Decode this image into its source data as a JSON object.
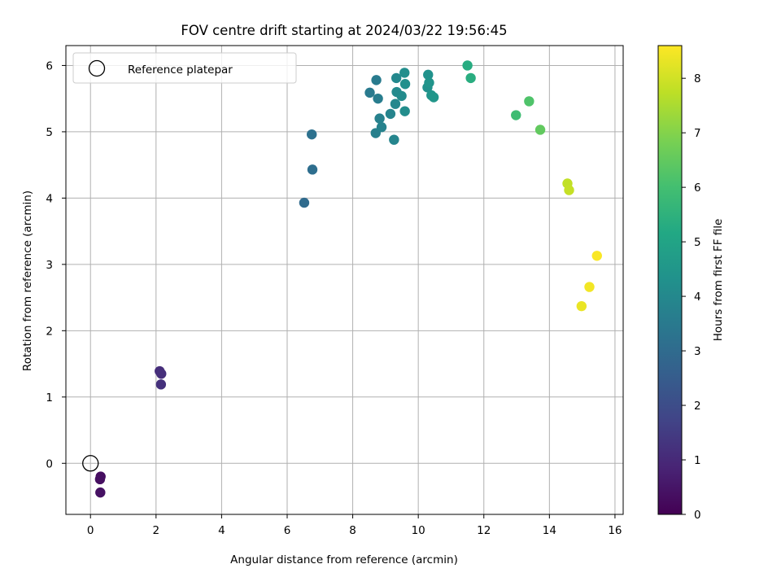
{
  "chart_data": {
    "type": "scatter",
    "title": "FOV centre drift starting at 2024/03/22 19:56:45",
    "xlabel": "Angular distance from reference (arcmin)",
    "ylabel": "Rotation from reference (arcmin)",
    "xlim": [
      -0.75,
      16.25
    ],
    "ylim": [
      -0.77,
      6.3
    ],
    "xticks": [
      0,
      2,
      4,
      6,
      8,
      10,
      12,
      14,
      16
    ],
    "yticks": [
      0,
      1,
      2,
      3,
      4,
      5,
      6
    ],
    "grid": true,
    "legend": {
      "position": "top-left",
      "entries": [
        "Reference platepar"
      ]
    },
    "reference": {
      "label": "Reference platepar",
      "x": 0,
      "y": 0
    },
    "colorbar": {
      "label": "Hours from first FF file",
      "colormap": "viridis",
      "range": [
        0,
        8.6
      ],
      "ticks": [
        0,
        1,
        2,
        3,
        4,
        5,
        6,
        7,
        8
      ]
    },
    "points": [
      {
        "x": 0.31,
        "y": -0.2,
        "hours": 0.3
      },
      {
        "x": 0.29,
        "y": -0.24,
        "hours": 0.35
      },
      {
        "x": 0.3,
        "y": -0.44,
        "hours": 0.4
      },
      {
        "x": 2.11,
        "y": 1.39,
        "hours": 1.1
      },
      {
        "x": 2.16,
        "y": 1.35,
        "hours": 1.15
      },
      {
        "x": 2.15,
        "y": 1.19,
        "hours": 1.2
      },
      {
        "x": 6.52,
        "y": 3.93,
        "hours": 3.0
      },
      {
        "x": 6.77,
        "y": 4.43,
        "hours": 3.1
      },
      {
        "x": 6.75,
        "y": 4.96,
        "hours": 3.2
      },
      {
        "x": 8.52,
        "y": 5.59,
        "hours": 3.5
      },
      {
        "x": 8.72,
        "y": 5.78,
        "hours": 3.55
      },
      {
        "x": 8.77,
        "y": 5.5,
        "hours": 3.6
      },
      {
        "x": 8.7,
        "y": 4.98,
        "hours": 3.7
      },
      {
        "x": 8.82,
        "y": 5.2,
        "hours": 3.75
      },
      {
        "x": 8.88,
        "y": 5.07,
        "hours": 3.8
      },
      {
        "x": 9.15,
        "y": 5.27,
        "hours": 3.85
      },
      {
        "x": 9.26,
        "y": 4.88,
        "hours": 3.9
      },
      {
        "x": 9.3,
        "y": 5.42,
        "hours": 3.95
      },
      {
        "x": 9.33,
        "y": 5.81,
        "hours": 4.0
      },
      {
        "x": 9.34,
        "y": 5.6,
        "hours": 4.05
      },
      {
        "x": 9.49,
        "y": 5.54,
        "hours": 4.1
      },
      {
        "x": 9.59,
        "y": 5.31,
        "hours": 4.15
      },
      {
        "x": 9.58,
        "y": 5.89,
        "hours": 4.2
      },
      {
        "x": 9.6,
        "y": 5.72,
        "hours": 4.25
      },
      {
        "x": 10.28,
        "y": 5.67,
        "hours": 4.3
      },
      {
        "x": 10.3,
        "y": 5.86,
        "hours": 4.35
      },
      {
        "x": 10.33,
        "y": 5.74,
        "hours": 4.4
      },
      {
        "x": 10.4,
        "y": 5.55,
        "hours": 4.45
      },
      {
        "x": 10.47,
        "y": 5.52,
        "hours": 4.5
      },
      {
        "x": 11.5,
        "y": 6.0,
        "hours": 5.3
      },
      {
        "x": 11.6,
        "y": 5.81,
        "hours": 5.35
      },
      {
        "x": 12.98,
        "y": 5.25,
        "hours": 5.9
      },
      {
        "x": 13.38,
        "y": 5.46,
        "hours": 6.2
      },
      {
        "x": 13.72,
        "y": 5.03,
        "hours": 6.5
      },
      {
        "x": 14.55,
        "y": 4.22,
        "hours": 7.8
      },
      {
        "x": 14.6,
        "y": 4.12,
        "hours": 7.85
      },
      {
        "x": 14.98,
        "y": 2.37,
        "hours": 8.35
      },
      {
        "x": 15.22,
        "y": 2.66,
        "hours": 8.45
      },
      {
        "x": 15.45,
        "y": 3.13,
        "hours": 8.55
      }
    ]
  }
}
